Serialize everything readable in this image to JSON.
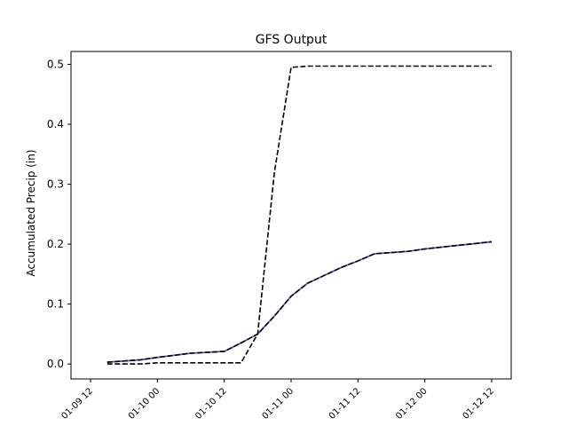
{
  "chart_data": {
    "type": "line",
    "title": "GFS Output",
    "xlabel": "",
    "ylabel": "Accumulated Precip (in)",
    "grid": false,
    "x_axis": {
      "type": "datetime",
      "range": [
        "01-09 12",
        "01-12 12"
      ],
      "tick_labels": [
        "01-09 12",
        "01-10 00",
        "01-10 12",
        "01-11 00",
        "01-11 12",
        "01-12 00",
        "01-12 12"
      ]
    },
    "y_axis": {
      "range": [
        0.0,
        0.5
      ],
      "tick_labels": [
        "0.0",
        "0.1",
        "0.2",
        "0.3",
        "0.4",
        "0.5"
      ]
    },
    "series": [
      {
        "color": "#b040c0",
        "style": "solid",
        "points": [
          [
            "01-09 15",
            0.003
          ],
          [
            "01-09 21",
            0.007
          ],
          [
            "01-10 00",
            0.011
          ],
          [
            "01-10 06",
            0.018
          ],
          [
            "01-10 12",
            0.021
          ],
          [
            "01-10 15",
            0.035
          ],
          [
            "01-10 18",
            0.05
          ],
          [
            "01-10 21",
            0.08
          ],
          [
            "01-11 00",
            0.113
          ],
          [
            "01-11 03",
            0.135
          ],
          [
            "01-11 06",
            0.148
          ],
          [
            "01-11 09",
            0.161
          ],
          [
            "01-11 12",
            0.172
          ],
          [
            "01-11 15",
            0.184
          ],
          [
            "01-11 21",
            0.188
          ],
          [
            "01-12 00",
            0.192
          ],
          [
            "01-12 06",
            0.198
          ],
          [
            "01-12 12",
            0.204
          ]
        ]
      },
      {
        "color": "#4b5ecc",
        "style": "solid",
        "points": [
          [
            "01-09 15",
            0.003
          ],
          [
            "01-09 21",
            0.007
          ],
          [
            "01-10 00",
            0.011
          ],
          [
            "01-10 06",
            0.018
          ],
          [
            "01-10 12",
            0.021
          ],
          [
            "01-10 15",
            0.035
          ],
          [
            "01-10 18",
            0.05
          ],
          [
            "01-10 21",
            0.08
          ],
          [
            "01-11 00",
            0.113
          ],
          [
            "01-11 03",
            0.135
          ],
          [
            "01-11 06",
            0.148
          ],
          [
            "01-11 09",
            0.161
          ],
          [
            "01-11 12",
            0.172
          ],
          [
            "01-11 15",
            0.184
          ],
          [
            "01-11 21",
            0.188
          ],
          [
            "01-12 00",
            0.192
          ],
          [
            "01-12 06",
            0.198
          ],
          [
            "01-12 12",
            0.204
          ]
        ]
      },
      {
        "color": "#000000",
        "style": "dashed",
        "points": [
          [
            "01-09 15",
            0.003
          ],
          [
            "01-09 21",
            0.007
          ],
          [
            "01-10 00",
            0.011
          ],
          [
            "01-10 06",
            0.018
          ],
          [
            "01-10 12",
            0.021
          ],
          [
            "01-10 15",
            0.035
          ],
          [
            "01-10 18",
            0.05
          ],
          [
            "01-10 21",
            0.08
          ],
          [
            "01-11 00",
            0.113
          ],
          [
            "01-11 03",
            0.135
          ],
          [
            "01-11 06",
            0.148
          ],
          [
            "01-11 09",
            0.161
          ],
          [
            "01-11 12",
            0.172
          ],
          [
            "01-11 15",
            0.184
          ],
          [
            "01-11 21",
            0.188
          ],
          [
            "01-12 00",
            0.192
          ],
          [
            "01-12 06",
            0.198
          ],
          [
            "01-12 12",
            0.204
          ]
        ]
      },
      {
        "color": "#000000",
        "style": "dashed",
        "points": [
          [
            "01-09 15",
            0.0
          ],
          [
            "01-09 21",
            0.0
          ],
          [
            "01-10 00",
            0.002
          ],
          [
            "01-10 06",
            0.002
          ],
          [
            "01-10 12",
            0.002
          ],
          [
            "01-10 15",
            0.002
          ],
          [
            "01-10 18",
            0.05
          ],
          [
            "01-10 21",
            0.32
          ],
          [
            "01-11 00",
            0.495
          ],
          [
            "01-11 03",
            0.497
          ],
          [
            "01-11 12",
            0.497
          ],
          [
            "01-12 00",
            0.497
          ],
          [
            "01-12 12",
            0.497
          ]
        ]
      }
    ]
  }
}
